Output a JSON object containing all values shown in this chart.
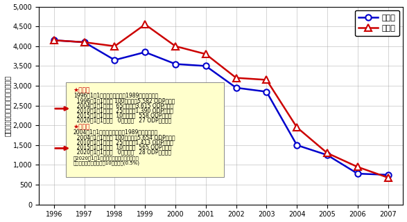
{
  "years": [
    1996,
    1997,
    1998,
    1999,
    2000,
    2001,
    2002,
    2003,
    2004,
    2005,
    2006,
    2007
  ],
  "consumption": [
    4150,
    4100,
    3650,
    3850,
    3550,
    3500,
    2950,
    2850,
    1500,
    1250,
    780,
    750
  ],
  "production": [
    4150,
    4100,
    4000,
    4550,
    4000,
    3800,
    3200,
    3150,
    1950,
    1300,
    950,
    680
  ],
  "consumption_color": "#0000cc",
  "production_color": "#cc0000",
  "ylabel": "生産量・消費量　［ＯＤＰトン］",
  "ylim_min": 0,
  "ylim_max": 5000,
  "yticks": [
    0,
    500,
    1000,
    1500,
    2000,
    2500,
    3000,
    3500,
    4000,
    4500,
    5000
  ],
  "legend_consumption": "消費量",
  "legend_production": "生産量",
  "bg_color": "#ffffff",
  "grid_color": "#aaaaaa",
  "annotation_bg": "#ffffcc"
}
